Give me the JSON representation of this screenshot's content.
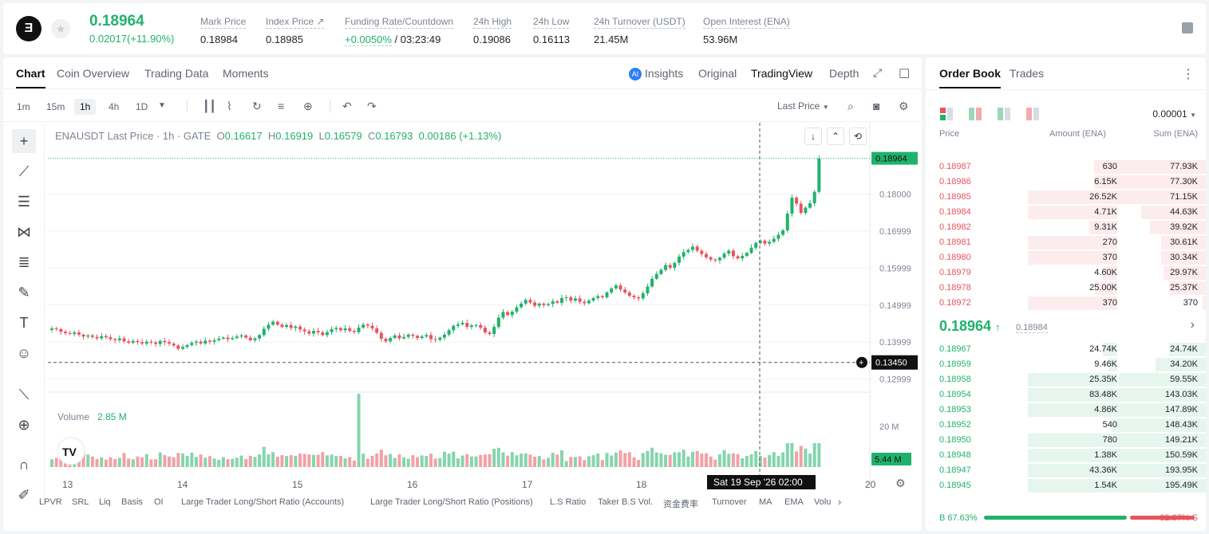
{
  "header": {
    "logo_icon": "ethena-logo-icon",
    "last_price": "0.18964",
    "change": "0.02017(+11.90%)",
    "stats": [
      {
        "label": "Mark Price",
        "value": "0.18984"
      },
      {
        "label": "Index Price ↗",
        "value": "0.18985"
      },
      {
        "label": "Funding Rate/Countdown",
        "value_rate": "+0.0050%",
        "value_rest": " / 03:23:49"
      },
      {
        "label": "24h High",
        "value": "0.19086"
      },
      {
        "label": "24h Low",
        "value": "0.16113"
      },
      {
        "label": "24h Turnover (USDT)",
        "value": "21.45M"
      },
      {
        "label": "Open Interest (ENA)",
        "value": "53.96M"
      }
    ]
  },
  "chart_panel": {
    "tabs": [
      "Chart",
      "Coin Overview",
      "Trading Data",
      "Moments"
    ],
    "active_tab": "Chart",
    "views": [
      "Insights",
      "Original",
      "TradingView",
      "Depth"
    ],
    "active_view": "TradingView",
    "timeframes": [
      "1m",
      "15m",
      "1h",
      "4h",
      "1D"
    ],
    "active_timeframe": "1h",
    "price_type": "Last Price",
    "legend": {
      "symbol": "ENAUSDT Last Price · 1h · GATE",
      "o": "0.16617",
      "h": "0.16919",
      "l": "0.16579",
      "c": "0.16793",
      "chg": "0.00186 (+1.13%)"
    },
    "volume_label": "Volume",
    "volume_value": "2.85 M",
    "crosshair_price": "0.13450",
    "crosshair_time": "Sat 19 Sep '26   02:00",
    "current_volume": "5.44 M",
    "bottom_indicators": [
      "LPVR",
      "SRL",
      "Liq",
      "Basis",
      "OI",
      "Large Trader Long/Short Ratio (Accounts)",
      "Large Trader Long/Short Ratio (Positions)",
      "L.S Ratio",
      "Taker B.S Vol.",
      "资金费率",
      "Turnover",
      "MA",
      "EMA",
      "Volu"
    ]
  },
  "chart_data": {
    "type": "candlestick",
    "title": "ENAUSDT Last Price · 1h · GATE",
    "x_ticks": [
      "13",
      "14",
      "15",
      "16",
      "17",
      "18",
      "20"
    ],
    "y_ticks": [
      "0.18000",
      "0.16999",
      "0.15999",
      "0.14999",
      "0.13999",
      "0.12999"
    ],
    "last_price": 0.18964,
    "crosshair_price": 0.1345,
    "closes": [
      0.1437,
      0.1435,
      0.1428,
      0.1424,
      0.1422,
      0.1426,
      0.142,
      0.1415,
      0.1418,
      0.1414,
      0.141,
      0.1416,
      0.1413,
      0.1408,
      0.1405,
      0.141,
      0.1402,
      0.1398,
      0.1403,
      0.14,
      0.1396,
      0.1401,
      0.1399,
      0.1395,
      0.1403,
      0.14,
      0.1396,
      0.1391,
      0.1382,
      0.1387,
      0.1392,
      0.1398,
      0.1401,
      0.1396,
      0.1404,
      0.1401,
      0.1405,
      0.1409,
      0.1412,
      0.1408,
      0.1411,
      0.1415,
      0.1418,
      0.1412,
      0.1405,
      0.141,
      0.1419,
      0.1436,
      0.1447,
      0.1455,
      0.1447,
      0.1441,
      0.1446,
      0.1438,
      0.1442,
      0.1434,
      0.1429,
      0.1423,
      0.143,
      0.1426,
      0.1419,
      0.1427,
      0.1435,
      0.1438,
      0.1432,
      0.1437,
      0.143,
      0.1427,
      0.1439,
      0.1447,
      0.1444,
      0.1437,
      0.1425,
      0.1409,
      0.1402,
      0.1411,
      0.1418,
      0.141,
      0.1414,
      0.142,
      0.1417,
      0.1411,
      0.1415,
      0.1419,
      0.1408,
      0.1406,
      0.1412,
      0.142,
      0.1432,
      0.1444,
      0.1448,
      0.1452,
      0.1441,
      0.1445,
      0.1446,
      0.1439,
      0.1426,
      0.1422,
      0.1441,
      0.1466,
      0.1481,
      0.1473,
      0.1482,
      0.1494,
      0.1504,
      0.1514,
      0.1507,
      0.1498,
      0.1504,
      0.15,
      0.1503,
      0.151,
      0.1506,
      0.1519,
      0.1521,
      0.1512,
      0.1518,
      0.1509,
      0.1505,
      0.1512,
      0.1519,
      0.1524,
      0.1521,
      0.1534,
      0.1545,
      0.1553,
      0.1542,
      0.1534,
      0.1525,
      0.1521,
      0.1518,
      0.1532,
      0.155,
      0.1571,
      0.1584,
      0.1595,
      0.1608,
      0.1601,
      0.1614,
      0.1631,
      0.1643,
      0.1649,
      0.1658,
      0.1647,
      0.1638,
      0.1629,
      0.1623,
      0.1621,
      0.1628,
      0.1639,
      0.1647,
      0.1632,
      0.1626,
      0.1633,
      0.1641,
      0.1655,
      0.1668,
      0.1674,
      0.1666,
      0.1671,
      0.1679,
      0.169,
      0.1702,
      0.1747,
      0.179,
      0.1774,
      0.1749,
      0.1763,
      0.1775,
      0.1806,
      0.1896
    ],
    "volume_axis_label": "20 M"
  },
  "order_book": {
    "tabs": [
      "Order Book",
      "Trades"
    ],
    "active_tab": "Order Book",
    "precision": "0.00001",
    "headers": [
      "Price",
      "Amount (ENA)",
      "Sum (ENA)"
    ],
    "asks": [
      {
        "price": "0.18987",
        "amount": "630",
        "sum": "77.93K",
        "af": 0.02,
        "sf": 0.4
      },
      {
        "price": "0.18986",
        "amount": "6.15K",
        "sum": "77.30K",
        "af": 0.06,
        "sf": 0.4
      },
      {
        "price": "0.18985",
        "amount": "26.52K",
        "sum": "71.15K",
        "af": 0.32,
        "sf": 0.37
      },
      {
        "price": "0.18984",
        "amount": "4.71K",
        "sum": "44.63K",
        "af": 0.32,
        "sf": 0.23
      },
      {
        "price": "0.18982",
        "amount": "9.31K",
        "sum": "39.92K",
        "af": 0.1,
        "sf": 0.2
      },
      {
        "price": "0.18981",
        "amount": "270",
        "sum": "30.61K",
        "af": 0.32,
        "sf": 0.16
      },
      {
        "price": "0.18980",
        "amount": "370",
        "sum": "30.34K",
        "af": 0.32,
        "sf": 0.16
      },
      {
        "price": "0.18979",
        "amount": "4.60K",
        "sum": "29.97K",
        "af": 0.05,
        "sf": 0.15
      },
      {
        "price": "0.18978",
        "amount": "25.00K",
        "sum": "25.37K",
        "af": 0.08,
        "sf": 0.13
      },
      {
        "price": "0.18972",
        "amount": "370",
        "sum": "370",
        "af": 0.32,
        "sf": 0.01
      }
    ],
    "mid_price": "0.18964",
    "mid_ref": "0.18984",
    "bids": [
      {
        "price": "0.18967",
        "amount": "24.74K",
        "sum": "24.74K",
        "af": 0.05,
        "sf": 0.13
      },
      {
        "price": "0.18959",
        "amount": "9.46K",
        "sum": "34.20K",
        "af": 0.03,
        "sf": 0.18
      },
      {
        "price": "0.18958",
        "amount": "25.35K",
        "sum": "59.55K",
        "af": 0.32,
        "sf": 0.31
      },
      {
        "price": "0.18954",
        "amount": "83.48K",
        "sum": "143.03K",
        "af": 0.32,
        "sf": 0.33
      },
      {
        "price": "0.18953",
        "amount": "4.86K",
        "sum": "147.89K",
        "af": 0.32,
        "sf": 0.33
      },
      {
        "price": "0.18952",
        "amount": "540",
        "sum": "148.43K",
        "af": 0.02,
        "sf": 0.33
      },
      {
        "price": "0.18950",
        "amount": "780",
        "sum": "149.21K",
        "af": 0.32,
        "sf": 0.33
      },
      {
        "price": "0.18948",
        "amount": "1.38K",
        "sum": "150.59K",
        "af": 0.32,
        "sf": 0.33
      },
      {
        "price": "0.18947",
        "amount": "43.36K",
        "sum": "193.95K",
        "af": 0.32,
        "sf": 0.33
      },
      {
        "price": "0.18945",
        "amount": "1.54K",
        "sum": "195.49K",
        "af": 0.32,
        "sf": 0.33
      }
    ],
    "buy_ratio": "B 67.63%",
    "sell_ratio": "32.37% S",
    "buy_fraction": 0.6763
  },
  "colors": {
    "up": "#20b26c",
    "down": "#e8545d"
  }
}
